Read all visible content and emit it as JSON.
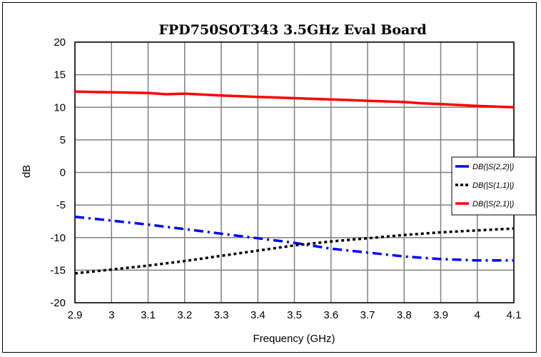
{
  "chart_data": {
    "type": "line",
    "title": "FPD750SOT343 3.5GHz Eval Board",
    "xlabel": "Frequency (GHz)",
    "ylabel": "dB",
    "xlim": [
      2.9,
      4.1
    ],
    "ylim": [
      -20,
      20
    ],
    "x_ticks": [
      "2.9",
      "3",
      "3.1",
      "3.2",
      "3.3",
      "3.4",
      "3.5",
      "3.6",
      "3.7",
      "3.8",
      "3.9",
      "4",
      "4.1"
    ],
    "y_ticks": [
      "20",
      "15",
      "10",
      "5",
      "0",
      "-5",
      "-10",
      "-15",
      "-20"
    ],
    "grid": true,
    "legend_position": "right",
    "series": [
      {
        "name": "DB(|S(2,2)|)",
        "color": "#0000ff",
        "dash": "dashdot",
        "points": [
          [
            2.9,
            -6.8
          ],
          [
            3.0,
            -7.4
          ],
          [
            3.1,
            -8.0
          ],
          [
            3.2,
            -8.7
          ],
          [
            3.3,
            -9.4
          ],
          [
            3.4,
            -10.1
          ],
          [
            3.5,
            -10.8
          ],
          [
            3.6,
            -11.7
          ],
          [
            3.7,
            -12.3
          ],
          [
            3.8,
            -12.9
          ],
          [
            3.9,
            -13.3
          ],
          [
            4.0,
            -13.5
          ],
          [
            4.1,
            -13.5
          ]
        ]
      },
      {
        "name": "DB(|S(1,1)|)",
        "color": "#000000",
        "dash": "dotted",
        "points": [
          [
            2.9,
            -15.5
          ],
          [
            3.0,
            -14.9
          ],
          [
            3.1,
            -14.3
          ],
          [
            3.2,
            -13.6
          ],
          [
            3.3,
            -12.8
          ],
          [
            3.4,
            -12.0
          ],
          [
            3.5,
            -11.2
          ],
          [
            3.6,
            -10.6
          ],
          [
            3.7,
            -10.1
          ],
          [
            3.8,
            -9.6
          ],
          [
            3.9,
            -9.2
          ],
          [
            4.0,
            -8.9
          ],
          [
            4.1,
            -8.6
          ]
        ]
      },
      {
        "name": "DB(|S(2,1)|)",
        "color": "#ff0000",
        "dash": "solid",
        "points": [
          [
            2.9,
            12.4
          ],
          [
            3.0,
            12.3
          ],
          [
            3.1,
            12.2
          ],
          [
            3.15,
            12.0
          ],
          [
            3.2,
            12.1
          ],
          [
            3.3,
            11.8
          ],
          [
            3.4,
            11.6
          ],
          [
            3.5,
            11.4
          ],
          [
            3.6,
            11.2
          ],
          [
            3.7,
            11.0
          ],
          [
            3.8,
            10.8
          ],
          [
            3.85,
            10.6
          ],
          [
            3.9,
            10.5
          ],
          [
            4.0,
            10.2
          ],
          [
            4.1,
            10.0
          ]
        ]
      }
    ]
  }
}
